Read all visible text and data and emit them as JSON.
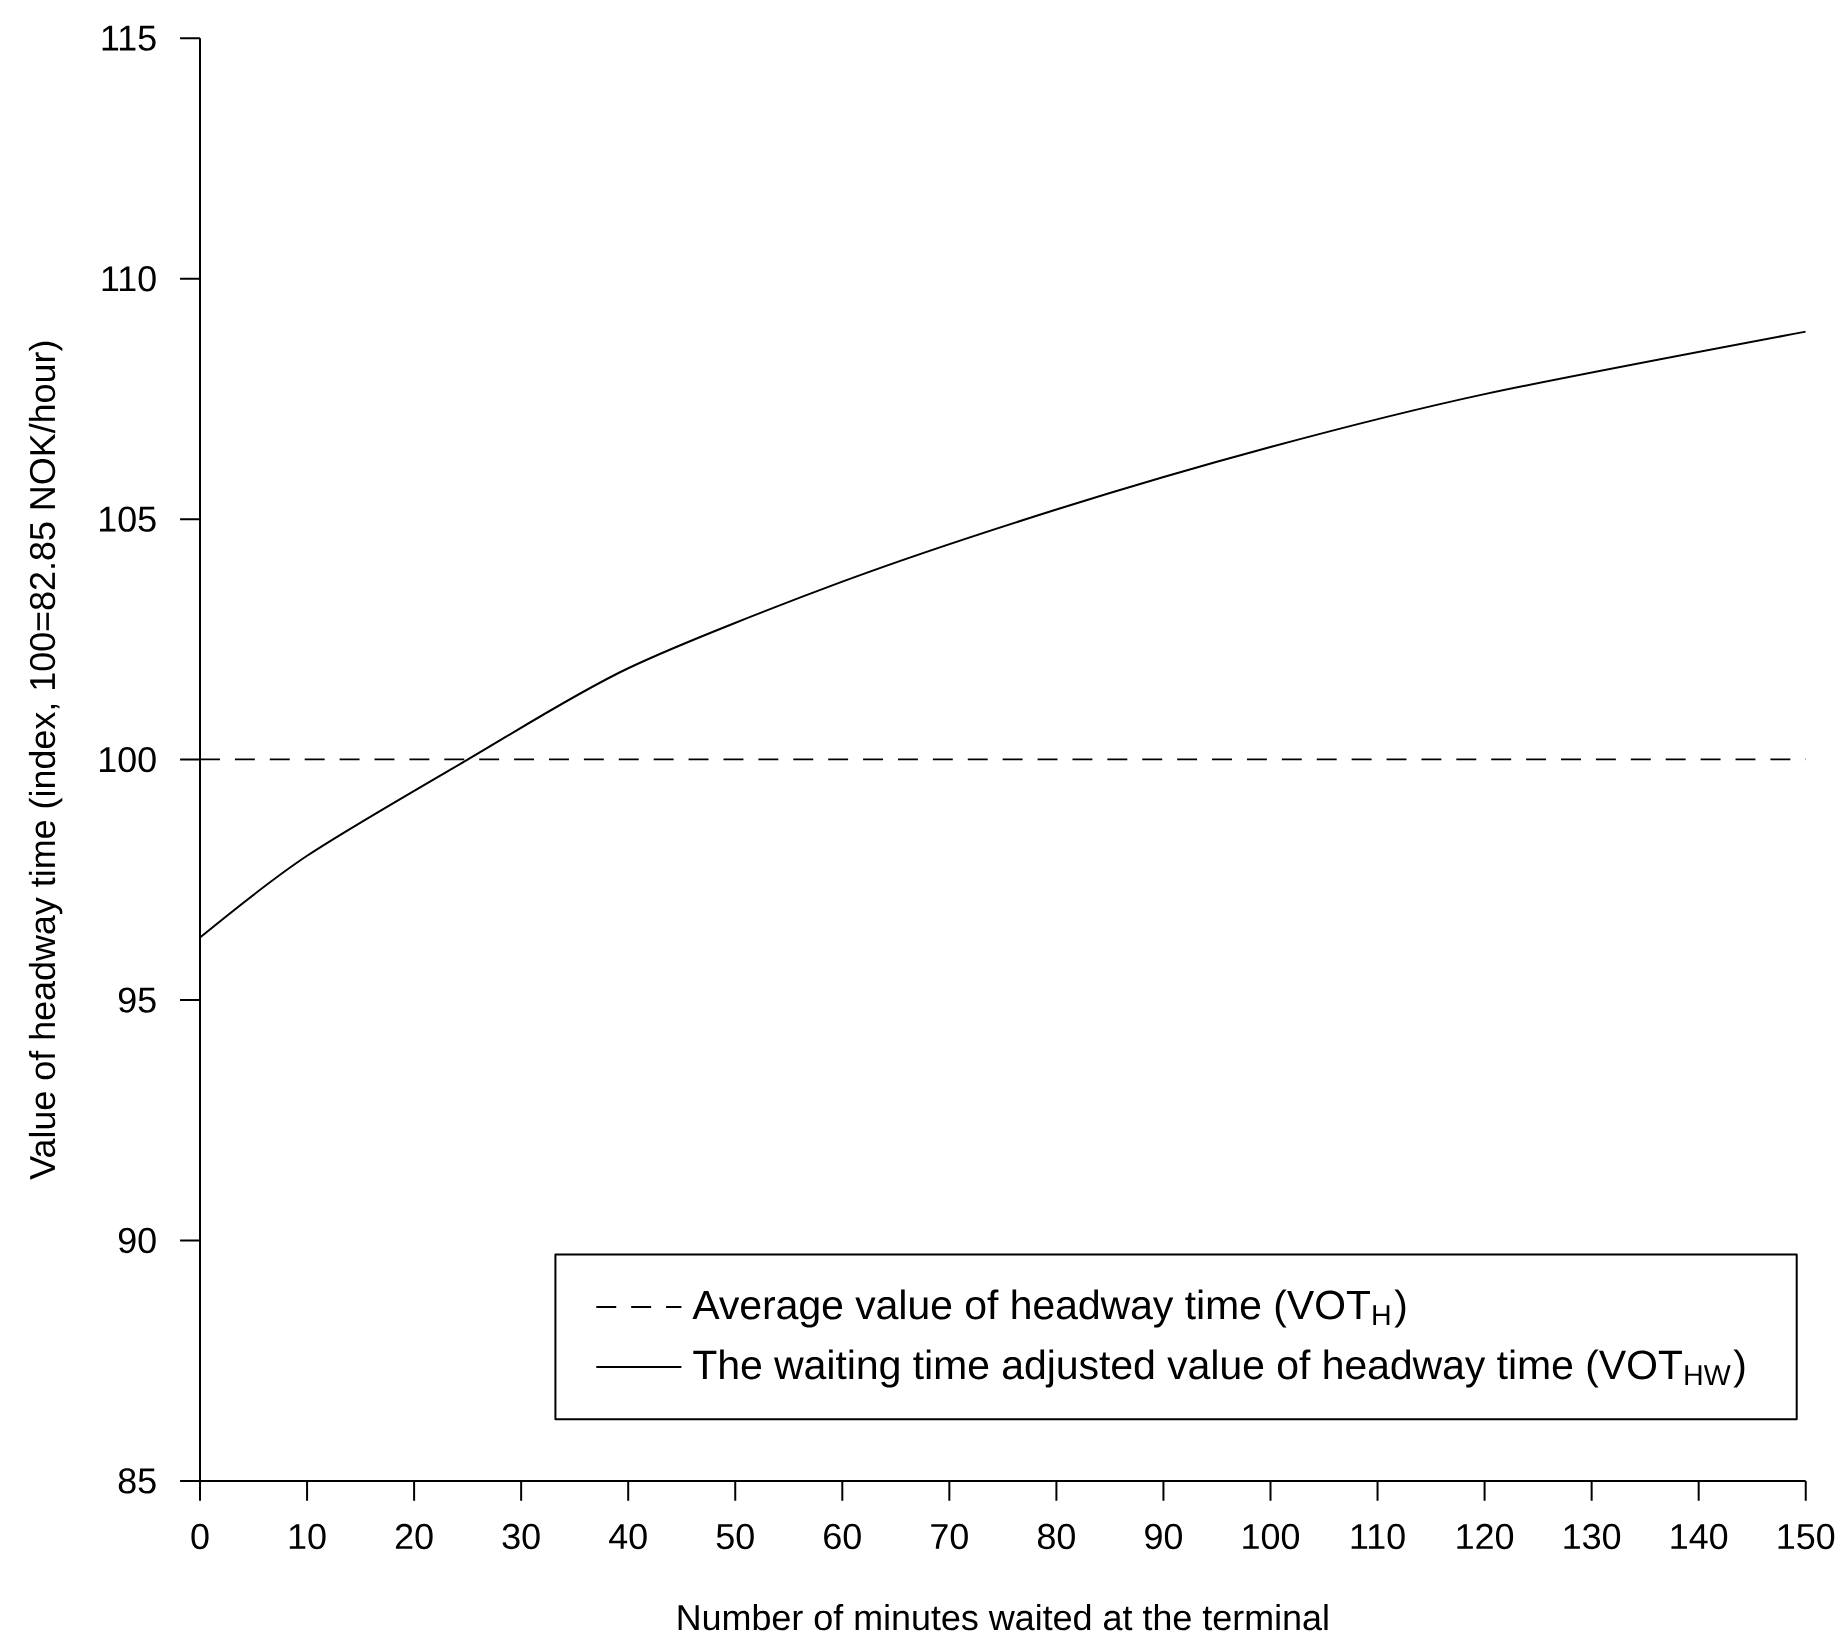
{
  "chart_data": {
    "type": "line",
    "xlabel": "Number of minutes waited at the terminal",
    "ylabel": "Value of headway time (index, 100=82.85 NOK/hour)",
    "xlim": [
      0,
      150
    ],
    "ylim": [
      85,
      115
    ],
    "xticks": [
      0,
      10,
      20,
      30,
      40,
      50,
      60,
      70,
      80,
      90,
      100,
      110,
      120,
      130,
      140,
      150
    ],
    "yticks": [
      85,
      90,
      95,
      100,
      105,
      110,
      115
    ],
    "grid": false,
    "legend": "bottom right",
    "marker": "none",
    "series": [
      {
        "name": "Average value of headway time  (VOT$_{H}$)",
        "color": "#000000",
        "line_style": "dashed",
        "x": [
          0,
          150
        ],
        "values": [
          100,
          100
        ]
      },
      {
        "name": "The waiting time adjusted value of headway time  (VOT$_{HW}$)",
        "color": "#000000",
        "line_style": "solid",
        "x": [
          0,
          10,
          25,
          40,
          60,
          80,
          100,
          120,
          150
        ],
        "values": [
          96.3,
          98.0,
          100,
          101.9,
          103.7,
          105.2,
          106.5,
          107.6,
          108.9
        ]
      }
    ]
  }
}
